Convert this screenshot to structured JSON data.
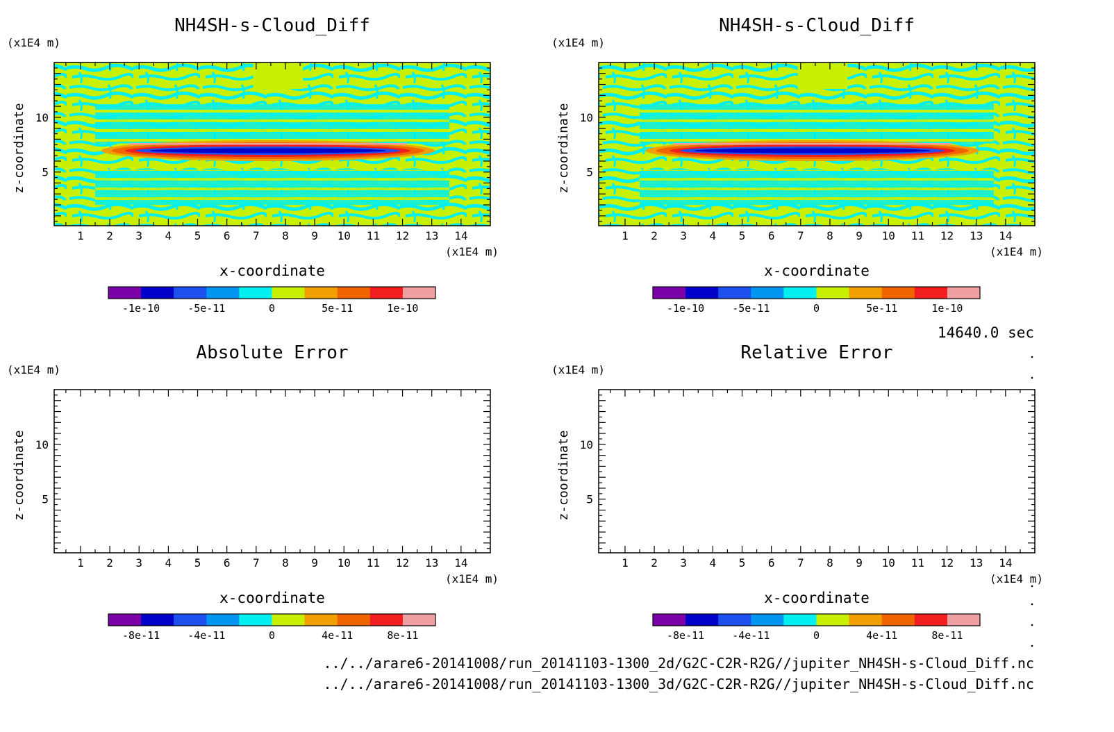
{
  "time_label": "14640.0 sec",
  "footer_paths": [
    "../../arare6-20141008/run_20141103-1300_2d/G2C-C2R-R2G//jupiter_NH4SH-s-Cloud_Diff.nc",
    "../../arare6-20141008/run_20141103-1300_3d/G2C-C2R-R2G//jupiter_NH4SH-s-Cloud_Diff.nc"
  ],
  "chart_data": [
    {
      "type": "heatmap",
      "title": "NH4SH-s-Cloud_Diff",
      "xlabel": "x-coordinate",
      "ylabel": "z-coordinate",
      "x_unit": "(x1E4 m)",
      "y_unit": "(x1E4 m)",
      "x_ticks": [
        "1",
        "2",
        "3",
        "4",
        "5",
        "6",
        "7",
        "8",
        "9",
        "10",
        "11",
        "12",
        "13",
        "14"
      ],
      "y_ticks": [
        "5",
        "10"
      ],
      "xlim": [
        0.1,
        15.0
      ],
      "ylim": [
        0.1,
        15.0
      ],
      "has_field": true,
      "colorbar": {
        "colors": [
          "#7b00a8",
          "#0000c8",
          "#1e50f0",
          "#0096f0",
          "#00f0f0",
          "#c8f000",
          "#f0a000",
          "#f06400",
          "#f01e1e",
          "#f0a0a0"
        ],
        "tick_labels": [
          "-1e-10",
          "-5e-11",
          "0",
          "5e-11",
          "1e-10"
        ]
      }
    },
    {
      "type": "heatmap",
      "title": "NH4SH-s-Cloud_Diff",
      "xlabel": "x-coordinate",
      "ylabel": "z-coordinate",
      "x_unit": "(x1E4 m)",
      "y_unit": "(x1E4 m)",
      "x_ticks": [
        "1",
        "2",
        "3",
        "4",
        "5",
        "6",
        "7",
        "8",
        "9",
        "10",
        "11",
        "12",
        "13",
        "14"
      ],
      "y_ticks": [
        "5",
        "10"
      ],
      "xlim": [
        0.1,
        15.0
      ],
      "ylim": [
        0.1,
        15.0
      ],
      "has_field": true,
      "colorbar": {
        "colors": [
          "#7b00a8",
          "#0000c8",
          "#1e50f0",
          "#0096f0",
          "#00f0f0",
          "#c8f000",
          "#f0a000",
          "#f06400",
          "#f01e1e",
          "#f0a0a0"
        ],
        "tick_labels": [
          "-1e-10",
          "-5e-11",
          "0",
          "5e-11",
          "1e-10"
        ]
      }
    },
    {
      "type": "heatmap",
      "title": "Absolute Error",
      "xlabel": "x-coordinate",
      "ylabel": "z-coordinate",
      "x_unit": "(x1E4 m)",
      "y_unit": "(x1E4 m)",
      "x_ticks": [
        "1",
        "2",
        "3",
        "4",
        "5",
        "6",
        "7",
        "8",
        "9",
        "10",
        "11",
        "12",
        "13",
        "14"
      ],
      "y_ticks": [
        "5",
        "10"
      ],
      "xlim": [
        0.1,
        15.0
      ],
      "ylim": [
        0.1,
        15.0
      ],
      "has_field": false,
      "colorbar": {
        "colors": [
          "#7b00a8",
          "#0000c8",
          "#1e50f0",
          "#0096f0",
          "#00f0f0",
          "#c8f000",
          "#f0a000",
          "#f06400",
          "#f01e1e",
          "#f0a0a0"
        ],
        "tick_labels": [
          "-8e-11",
          "-4e-11",
          "0",
          "4e-11",
          "8e-11"
        ]
      }
    },
    {
      "type": "heatmap",
      "title": "Relative Error",
      "xlabel": "x-coordinate",
      "ylabel": "z-coordinate",
      "x_unit": "(x1E4 m)",
      "y_unit": "(x1E4 m)",
      "x_ticks": [
        "1",
        "2",
        "3",
        "4",
        "5",
        "6",
        "7",
        "8",
        "9",
        "10",
        "11",
        "12",
        "13",
        "14"
      ],
      "y_ticks": [
        "5",
        "10"
      ],
      "xlim": [
        0.1,
        15.0
      ],
      "ylim": [
        0.1,
        15.0
      ],
      "has_field": false,
      "colorbar": {
        "colors": [
          "#7b00a8",
          "#0000c8",
          "#1e50f0",
          "#0096f0",
          "#00f0f0",
          "#c8f000",
          "#f0a000",
          "#f06400",
          "#f01e1e",
          "#f0a0a0"
        ],
        "tick_labels": [
          "-8e-11",
          "-4e-11",
          "0",
          "4e-11",
          "8e-11"
        ]
      }
    }
  ]
}
